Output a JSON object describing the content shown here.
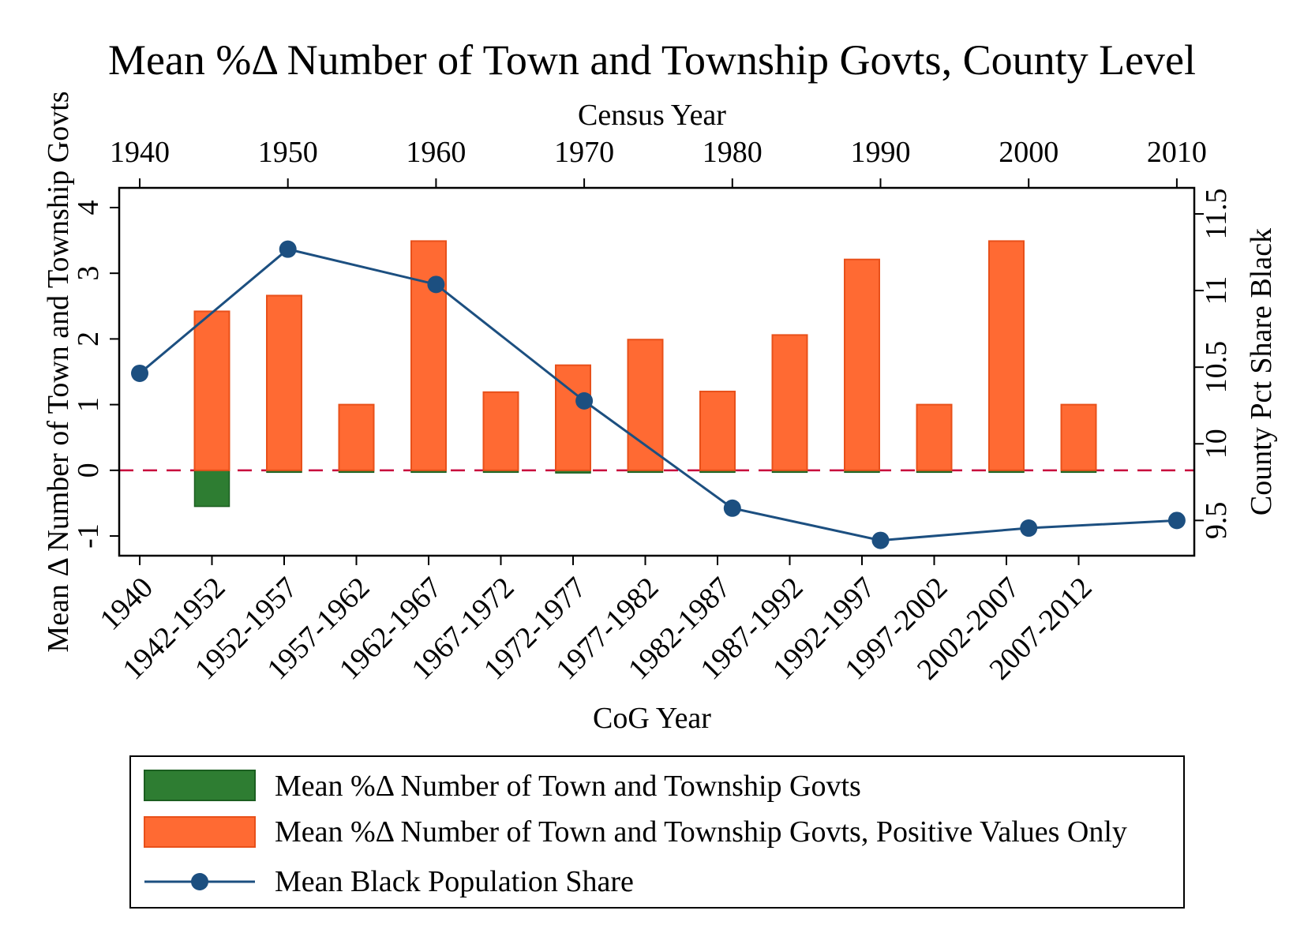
{
  "chart_data": {
    "type": "bar",
    "title": "Mean %Δ Number of Town and Township Govts, County Level",
    "xlabel": "CoG Year",
    "x2label": "Census Year",
    "ylabel": "Mean Δ Number of Town and Township Govts",
    "y2label": "County Pct Share Black",
    "categories": [
      "1940",
      "1942-1952",
      "1952-1957",
      "1957-1962",
      "1962-1967",
      "1967-1972",
      "1972-1977",
      "1977-1982",
      "1982-1987",
      "1987-1992",
      "1992-1997",
      "1997-2002",
      "2002-2007",
      "2007-2012"
    ],
    "census_years": [
      "1940",
      "1950",
      "1960",
      "1970",
      "1980",
      "1990",
      "2000",
      "2010"
    ],
    "census_x": [
      1940,
      1950,
      1960,
      1970,
      1980,
      1990,
      2000,
      2010
    ],
    "ylim": [
      -1.3,
      4.3
    ],
    "y_ticks": [
      "-1",
      "0",
      "1",
      "2",
      "3",
      "4"
    ],
    "y2lim": [
      9.27,
      11.67
    ],
    "y2_ticks": [
      "9.5",
      "10",
      "10.5",
      "11",
      "11.5"
    ],
    "series": [
      {
        "name": "Mean %Δ Number of Town and Township Govts",
        "kind": "bar",
        "color": "#2e7d32",
        "values": [
          null,
          -0.55,
          0,
          0,
          0,
          -0.03,
          -0.04,
          0,
          0,
          0,
          0,
          -0.02,
          0,
          -0.03
        ]
      },
      {
        "name": "Mean %Δ Number of Town and Township Govts, Positive Values Only",
        "kind": "bar",
        "color": "#ff6a33",
        "values": [
          null,
          2.42,
          2.66,
          1.0,
          3.49,
          1.19,
          1.6,
          1.99,
          1.2,
          2.06,
          3.21,
          1.0,
          3.49,
          1.0
        ]
      },
      {
        "name": "Mean Black Population Share",
        "kind": "line",
        "axis": "y2",
        "color": "#1c4f80",
        "x": [
          1940,
          1950,
          1960,
          1970,
          1980,
          1990,
          2000,
          2010
        ],
        "values": [
          10.46,
          11.27,
          11.04,
          10.28,
          9.58,
          9.37,
          9.45,
          9.5
        ]
      }
    ],
    "zero_line": {
      "color": "#c8003c",
      "style": "dashed"
    },
    "grid": false,
    "legend_position": "bottom"
  }
}
